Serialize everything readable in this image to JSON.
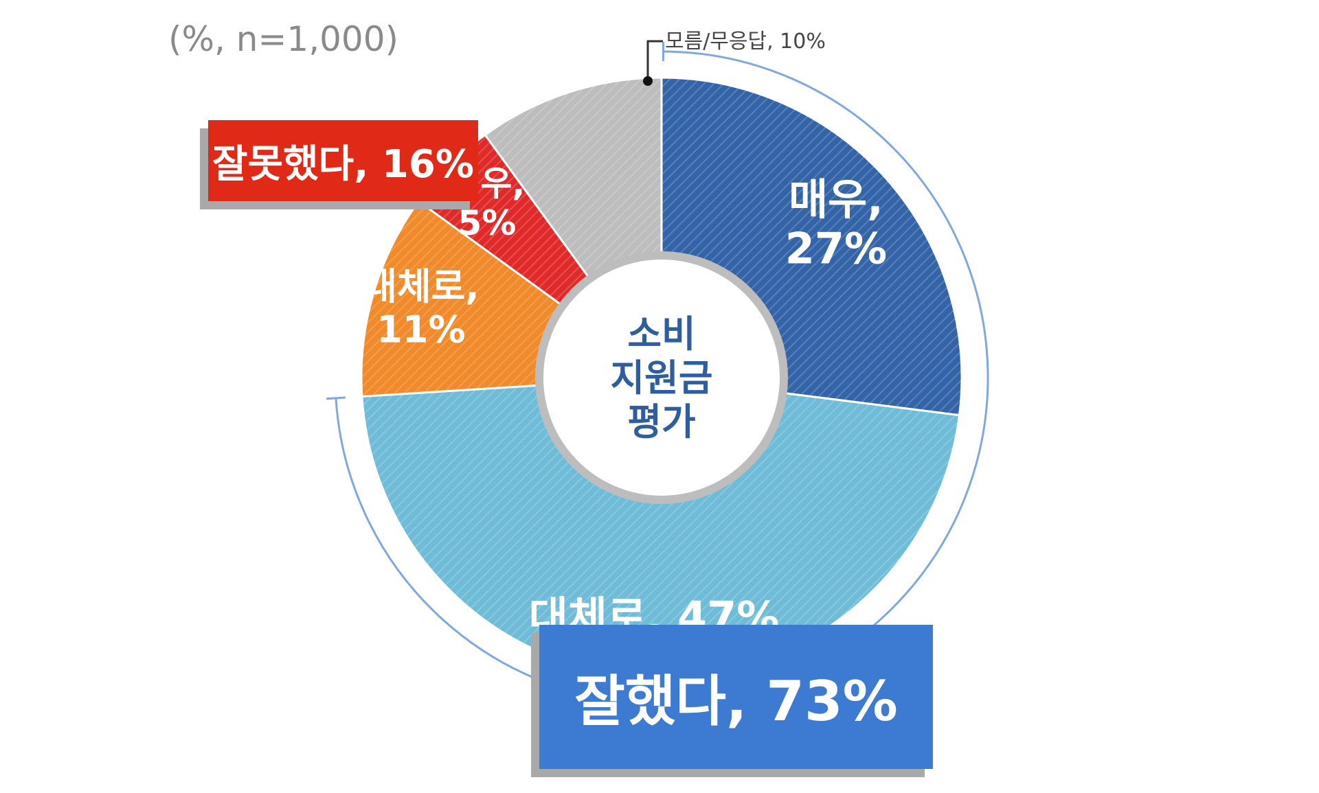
{
  "note": "(%, n=1,000)",
  "center_label": [
    "소비",
    "지원금",
    "평가"
  ],
  "callouts": {
    "dont_know": "모름/무응답, 10%",
    "negative_total": "잘못했다, 16%",
    "positive_total": "잘했다, 73%"
  },
  "chart_data": {
    "type": "pie",
    "title": "",
    "start": "12 o'clock, clockwise",
    "slices": [
      {
        "label_lines": [
          "매우,",
          "27%"
        ],
        "group": "잘했다",
        "value": 27,
        "color": "#3464a8"
      },
      {
        "label_lines": [
          "대체로, 47%"
        ],
        "group": "잘했다",
        "value": 47,
        "color": "#6fbcd8"
      },
      {
        "label_lines": [
          "대체로,",
          "11%"
        ],
        "group": "잘못했다",
        "value": 11,
        "color": "#f08a2a"
      },
      {
        "label_lines": [
          "매우,",
          "5%"
        ],
        "group": "잘못했다",
        "value": 5,
        "color": "#e02a2a"
      },
      {
        "label_lines": [],
        "group": "모름/무응답",
        "value": 10,
        "color": "#bdbdbd"
      }
    ],
    "groups": [
      {
        "name": "잘했다",
        "value": 73
      },
      {
        "name": "잘못했다",
        "value": 16
      },
      {
        "name": "모름/무응답",
        "value": 10
      }
    ]
  },
  "colors": {
    "accent_blue": "#3d7ad2",
    "accent_red": "#e02a17",
    "bracket_line": "#7fa7e0",
    "center_text": "#2f5e9e",
    "center_ring": "#bdbdbd"
  }
}
